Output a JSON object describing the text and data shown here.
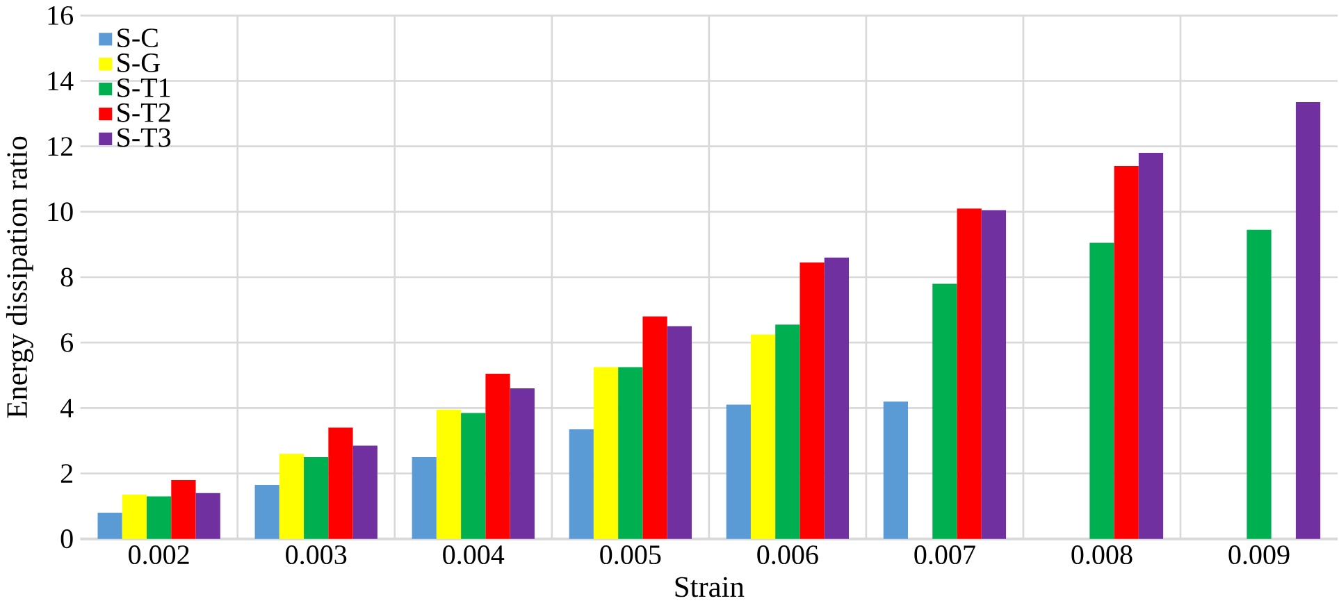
{
  "chart_data": {
    "type": "bar",
    "xlabel": "Strain",
    "ylabel": "Energy dissipation ratio",
    "categories": [
      "0.002",
      "0.003",
      "0.004",
      "0.005",
      "0.006",
      "0.007",
      "0.008",
      "0.009"
    ],
    "series": [
      {
        "name": "S-C",
        "color": "#5b9bd5",
        "values": [
          0.8,
          1.65,
          2.5,
          3.35,
          4.1,
          4.2,
          null,
          null
        ]
      },
      {
        "name": "S-G",
        "color": "#ffff00",
        "values": [
          1.35,
          2.6,
          3.95,
          5.25,
          6.25,
          null,
          null,
          null
        ]
      },
      {
        "name": "S-T1",
        "color": "#00b050",
        "values": [
          1.3,
          2.5,
          3.85,
          5.25,
          6.55,
          7.8,
          9.05,
          9.45
        ]
      },
      {
        "name": "S-T2",
        "color": "#ff0000",
        "values": [
          1.8,
          3.4,
          5.05,
          6.8,
          8.45,
          10.1,
          11.4,
          null
        ]
      },
      {
        "name": "S-T3",
        "color": "#7030a0",
        "values": [
          1.4,
          2.85,
          4.6,
          6.5,
          8.6,
          10.05,
          11.8,
          13.35
        ]
      }
    ],
    "ylim": [
      0,
      16
    ],
    "yticks": [
      0,
      2,
      4,
      6,
      8,
      10,
      12,
      14,
      16
    ],
    "grid": true,
    "legend": "top left"
  }
}
